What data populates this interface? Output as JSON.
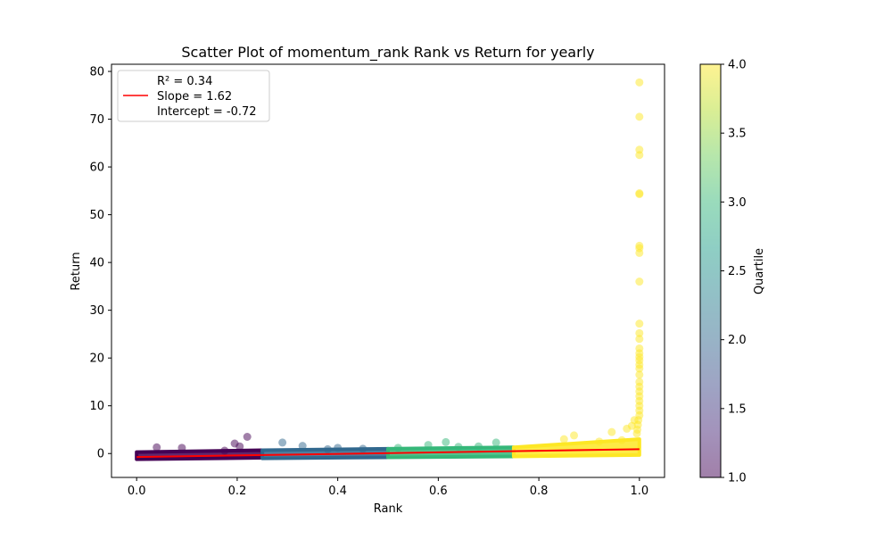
{
  "chart_data": {
    "type": "scatter",
    "title": "Scatter Plot of momentum_rank Rank vs Return for yearly",
    "xlabel": "Rank",
    "ylabel": "Return",
    "xlim": [
      -0.05,
      1.05
    ],
    "ylim": [
      -5,
      81.5
    ],
    "x_ticks": [
      0.0,
      0.2,
      0.4,
      0.6,
      0.8,
      1.0
    ],
    "x_tick_labels": [
      "0.0",
      "0.2",
      "0.4",
      "0.6",
      "0.8",
      "1.0"
    ],
    "y_ticks": [
      0,
      10,
      20,
      30,
      40,
      50,
      60,
      70,
      80
    ],
    "y_tick_labels": [
      "0",
      "10",
      "20",
      "30",
      "40",
      "50",
      "60",
      "70",
      "80"
    ],
    "grid": false,
    "legend_placement": "top-left",
    "legend": {
      "lines": [
        "R² = 0.34",
        "Slope = 1.62",
        "Intercept = -0.72"
      ],
      "line_color": "#ff0000"
    },
    "colorbar": {
      "label": "Quartile",
      "range": [
        1.0,
        4.0
      ],
      "ticks": [
        1.0,
        1.5,
        2.0,
        2.5,
        3.0,
        3.5,
        4.0
      ],
      "tick_labels": [
        "1.0",
        "1.5",
        "2.0",
        "2.5",
        "3.0",
        "3.5",
        "4.0"
      ],
      "colormap": "viridis",
      "alpha": 0.5
    },
    "quartile_colors": {
      "q1": "#440154",
      "q2": "#31688e",
      "q3": "#35b779",
      "q4": "#fde725"
    },
    "regression": {
      "slope": 1.62,
      "intercept": -0.72,
      "x_range": [
        0.0,
        1.0
      ],
      "color": "#ff0000"
    },
    "bands": [
      {
        "quartile": 1,
        "x": [
          0.0,
          0.25
        ],
        "y_low": [
          -1.2,
          -0.9
        ],
        "y_high": [
          0.3,
          0.7
        ]
      },
      {
        "quartile": 2,
        "x": [
          0.25,
          0.5
        ],
        "y_low": [
          -1.0,
          -0.8
        ],
        "y_high": [
          0.7,
          1.0
        ]
      },
      {
        "quartile": 3,
        "x": [
          0.5,
          0.75
        ],
        "y_low": [
          -0.8,
          -0.6
        ],
        "y_high": [
          1.0,
          1.3
        ]
      },
      {
        "quartile": 4,
        "x": [
          0.75,
          1.0
        ],
        "y_low": [
          -0.6,
          -0.3
        ],
        "y_high": [
          1.3,
          3.0
        ]
      }
    ],
    "series": [
      {
        "quartile": 1,
        "points": [
          [
            0.04,
            1.3
          ],
          [
            0.09,
            1.2
          ],
          [
            0.175,
            0.6
          ],
          [
            0.195,
            2.1
          ],
          [
            0.205,
            1.5
          ],
          [
            0.22,
            3.5
          ]
        ]
      },
      {
        "quartile": 2,
        "points": [
          [
            0.29,
            2.3
          ],
          [
            0.33,
            1.6
          ],
          [
            0.4,
            1.2
          ],
          [
            0.38,
            0.9
          ],
          [
            0.45,
            1.0
          ]
        ]
      },
      {
        "quartile": 3,
        "points": [
          [
            0.52,
            1.2
          ],
          [
            0.58,
            1.8
          ],
          [
            0.615,
            2.4
          ],
          [
            0.64,
            1.4
          ],
          [
            0.715,
            2.3
          ],
          [
            0.68,
            1.5
          ]
        ]
      },
      {
        "quartile": 4,
        "points": [
          [
            0.85,
            3.0
          ],
          [
            0.87,
            3.8
          ],
          [
            0.92,
            2.5
          ],
          [
            0.945,
            4.5
          ],
          [
            0.965,
            2.8
          ],
          [
            0.975,
            5.2
          ],
          [
            0.985,
            5.8
          ],
          [
            0.99,
            7.0
          ],
          [
            1.0,
            77.7
          ],
          [
            1.0,
            70.5
          ],
          [
            1.0,
            63.6
          ],
          [
            1.0,
            62.5
          ],
          [
            1.0,
            54.5
          ],
          [
            1.0,
            54.3
          ],
          [
            1.0,
            43.5
          ],
          [
            1.0,
            43.0
          ],
          [
            1.0,
            42.0
          ],
          [
            1.0,
            36.0
          ],
          [
            1.0,
            27.2
          ],
          [
            1.0,
            25.2
          ],
          [
            1.0,
            24.0
          ],
          [
            1.0,
            22.0
          ],
          [
            1.0,
            21.0
          ],
          [
            1.0,
            20.2
          ],
          [
            1.0,
            19.5
          ],
          [
            1.0,
            18.6
          ],
          [
            1.0,
            17.8
          ],
          [
            1.0,
            16.5
          ],
          [
            1.0,
            15.0
          ],
          [
            1.0,
            14.0
          ],
          [
            1.0,
            13.0
          ],
          [
            1.0,
            12.0
          ],
          [
            1.0,
            11.0
          ],
          [
            1.0,
            10.0
          ],
          [
            1.0,
            9.0
          ],
          [
            1.0,
            8.0
          ],
          [
            0.998,
            7.0
          ],
          [
            0.997,
            6.0
          ],
          [
            0.996,
            5.0
          ],
          [
            0.995,
            4.2
          ]
        ]
      }
    ]
  }
}
